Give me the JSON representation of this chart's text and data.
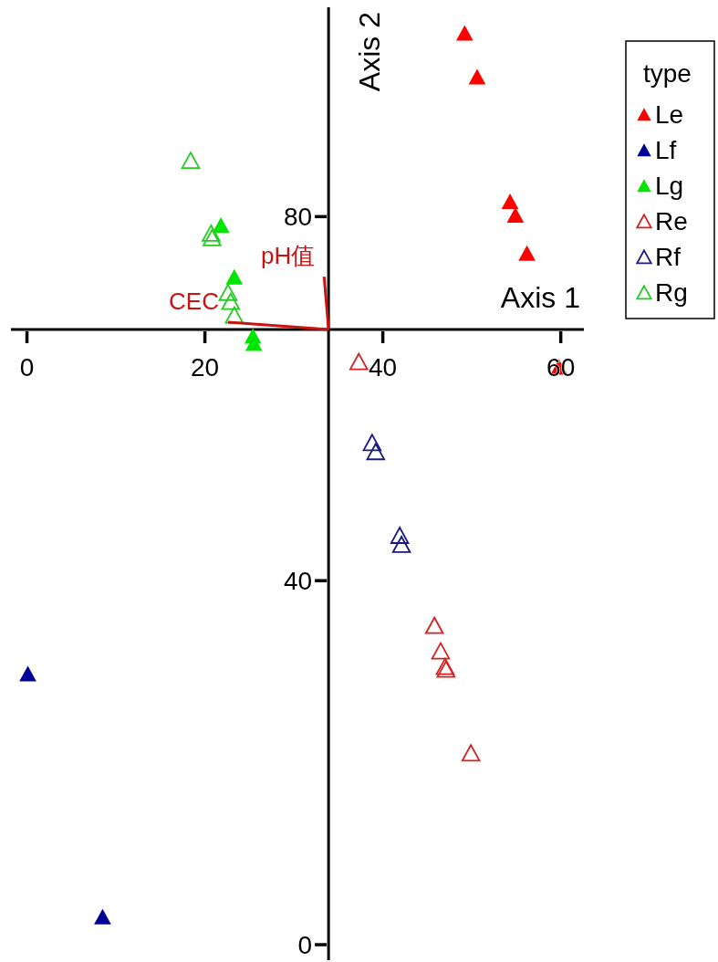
{
  "chart_data": {
    "type": "scatter",
    "xlabel": "Axis 1",
    "ylabel": "Axis 2",
    "legend_title": "type",
    "legend": "right",
    "marker": "triangle",
    "grid": false,
    "xlim": [
      -1.8,
      62.6
    ],
    "ylim": [
      -1.7,
      103
    ],
    "xticks": [
      0,
      20,
      40,
      60
    ],
    "yticks": [
      0,
      40,
      80
    ],
    "series": [
      {
        "name": "Le",
        "color": "#ff0000",
        "x": [
          49.2,
          50.6,
          54.3,
          54.9,
          56.2,
          59.8
        ],
        "values": [
          100.1,
          95.3,
          81.6,
          80.1,
          75.9,
          63.4
        ]
      },
      {
        "name": "Lf",
        "color": "#000099",
        "x": [
          0.1,
          8.5
        ],
        "values": [
          29.7,
          3.0
        ]
      },
      {
        "name": "Lg",
        "color": "#00e600",
        "x": [
          21.8,
          23.3,
          25.4,
          25.5
        ],
        "values": [
          79.0,
          73.3,
          66.8,
          66.0
        ]
      },
      {
        "name": "Re",
        "color": "#d42020",
        "marker": "triangle-open",
        "x": [
          37.3,
          45.8,
          46.5,
          47.0,
          47.1,
          49.9
        ],
        "values": [
          64.0,
          35.0,
          32.2,
          30.5,
          30.2,
          21.0
        ]
      },
      {
        "name": "Rf",
        "color": "#1a1a80",
        "marker": "triangle-open",
        "x": [
          38.8,
          39.2,
          41.9,
          42.1
        ],
        "values": [
          55.1,
          54.1,
          44.9,
          43.9
        ]
      },
      {
        "name": "Rg",
        "color": "#22cc22",
        "marker": "triangle-open",
        "x": [
          18.4,
          20.7,
          20.8,
          22.6,
          22.9,
          23.3
        ],
        "values": [
          86.1,
          78.1,
          77.6,
          71.6,
          70.6,
          69.1
        ]
      },
      {
        "name": "CEC",
        "type": "line",
        "color": "#cc1111",
        "marker": "none",
        "x": [
          33.9,
          22.6
        ],
        "values": [
          67.6,
          68.4
        ]
      },
      {
        "name": "pH值",
        "type": "line",
        "color": "#cc1111",
        "marker": "none",
        "x": [
          33.9,
          33.4
        ],
        "values": [
          67.6,
          73.4
        ]
      }
    ]
  }
}
